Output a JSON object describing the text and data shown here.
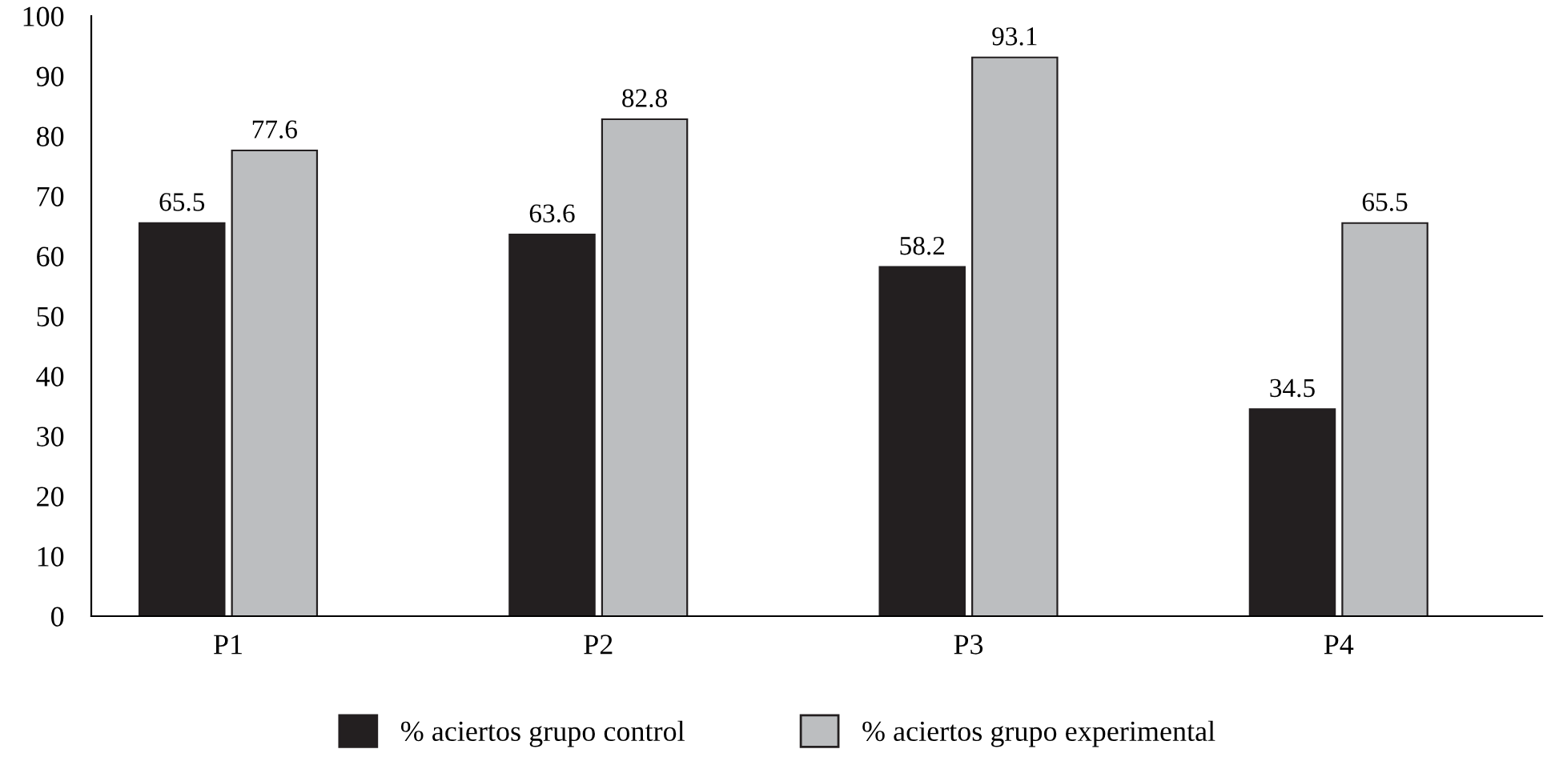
{
  "chart_data": {
    "type": "bar",
    "categories": [
      "P1",
      "P2",
      "P3",
      "P4"
    ],
    "series": [
      {
        "name": "% aciertos grupo control",
        "color": "#231f20",
        "values": [
          65.5,
          63.6,
          58.2,
          34.5
        ]
      },
      {
        "name": "% aciertos grupo experimental",
        "color": "#bcbec0",
        "values": [
          77.6,
          82.8,
          93.1,
          65.5
        ]
      }
    ],
    "ylim": [
      0,
      100
    ],
    "yticks": [
      0,
      10,
      20,
      30,
      40,
      50,
      60,
      70,
      80,
      90,
      100
    ],
    "grid": false,
    "legend": "bottom",
    "data_labels": true
  }
}
